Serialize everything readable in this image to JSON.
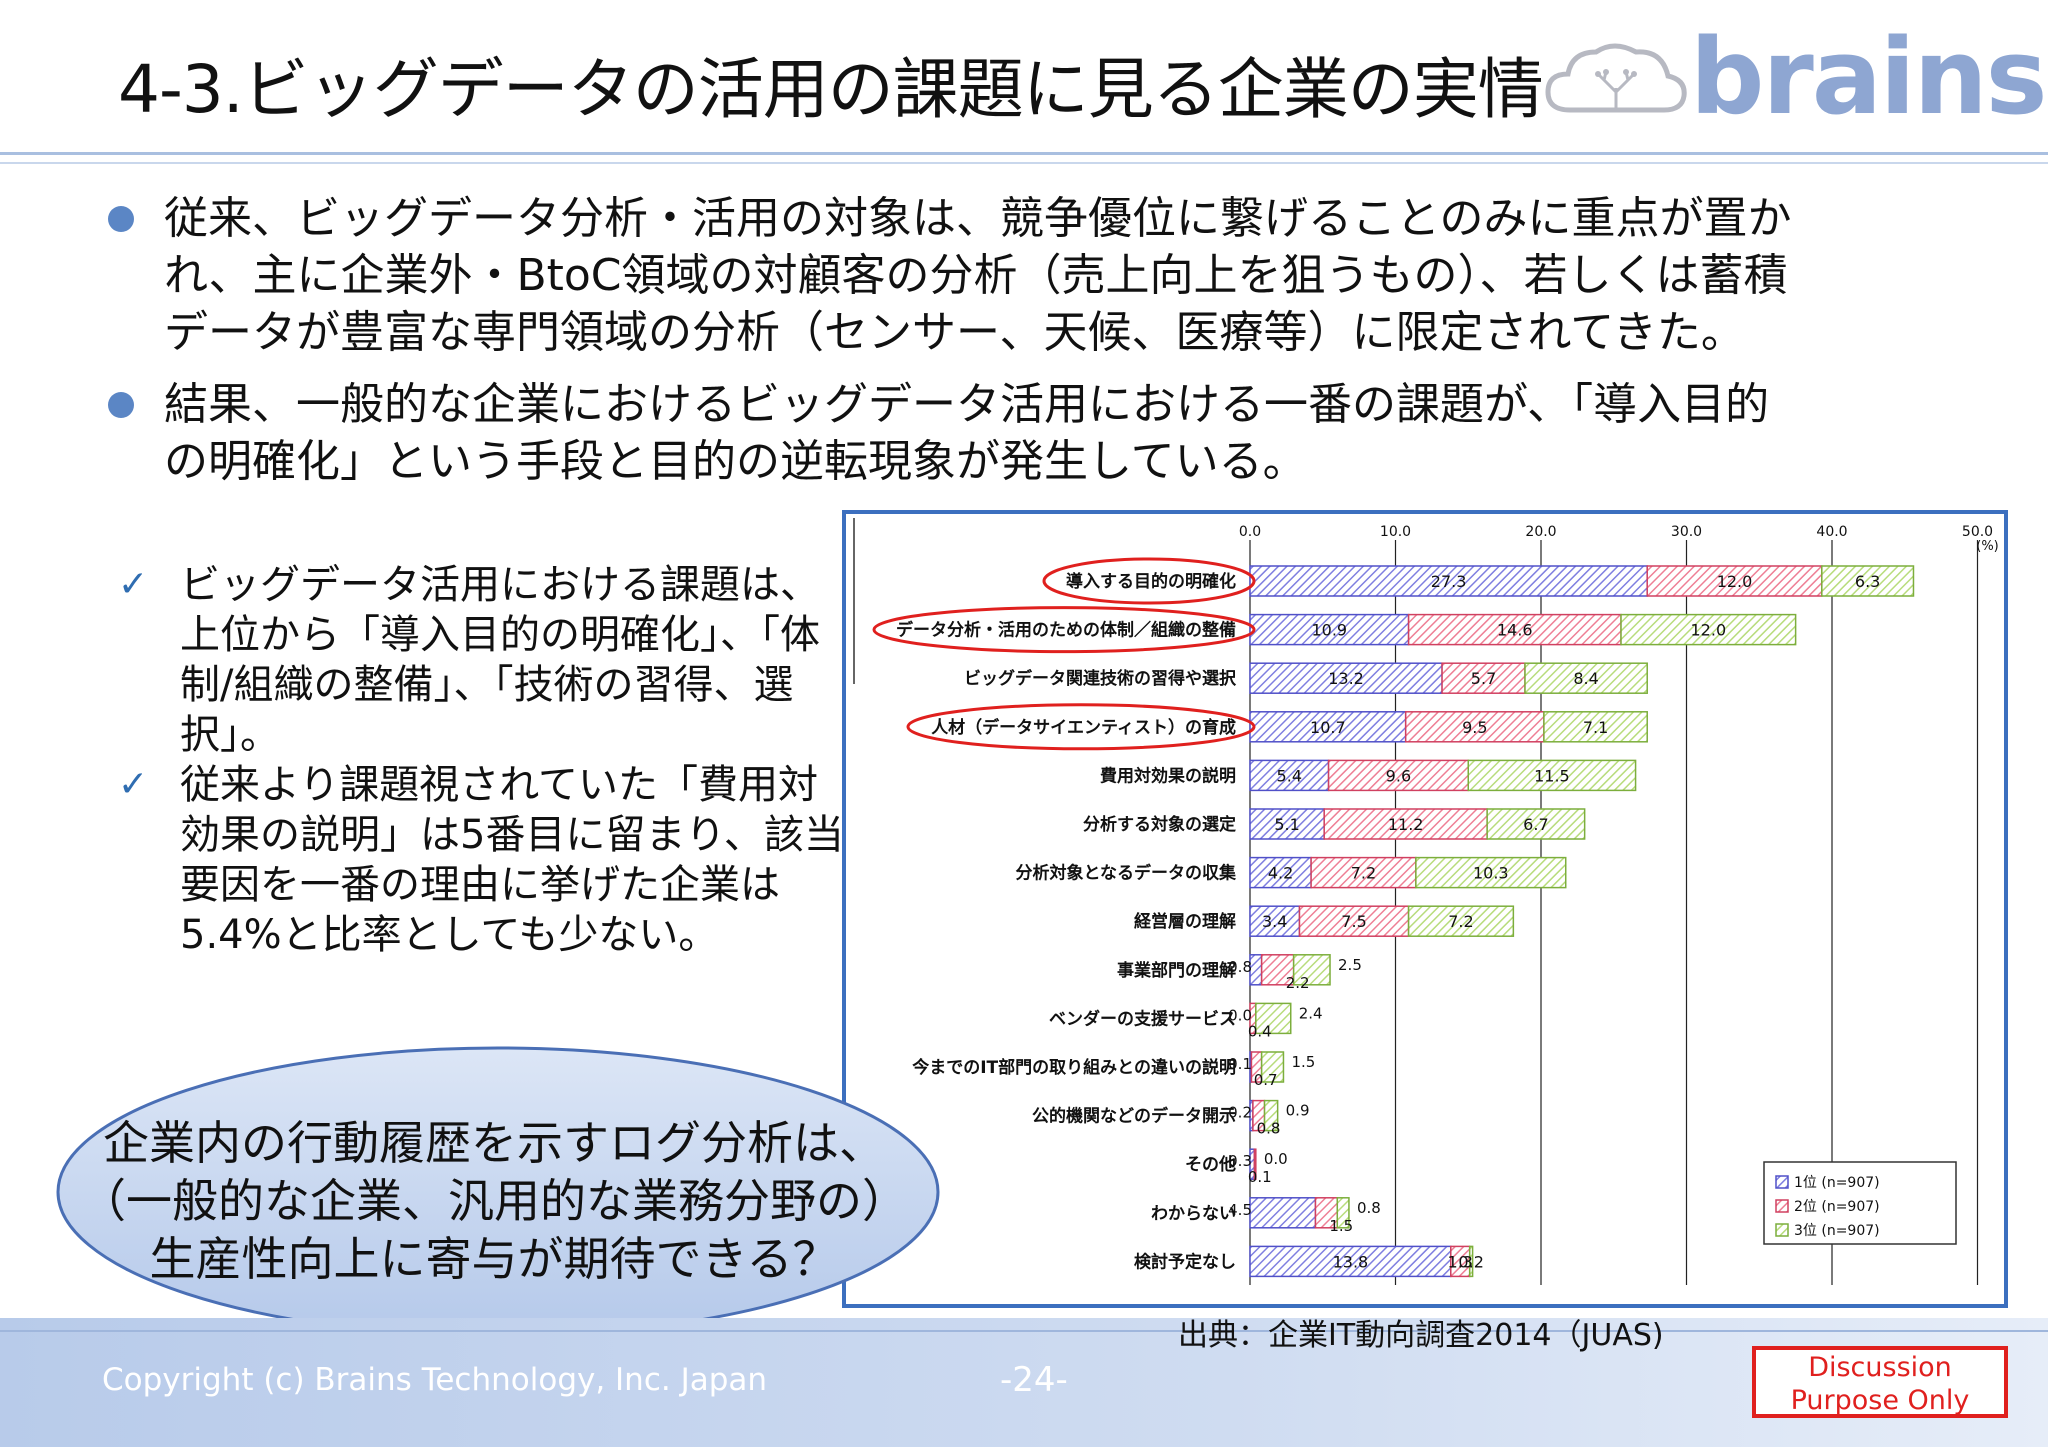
{
  "header": {
    "title": "4-3.ビッグデータの活用の課題に見る企業の実情",
    "logo_text": "brains"
  },
  "bullets": [
    "従来、ビッグデータ分析・活用の対象は、競争優位に繋げることのみに重点が置か\nれ、主に企業外・BtoC領域の対顧客の分析（売上向上を狙うもの）、若しくは蓄積\nデータが豊富な専門領域の分析（センサー、天候、医療等）に限定されてきた。",
    "結果、一般的な企業におけるビッグデータ活用における一番の課題が、「導入目的\nの明確化」という手段と目的の逆転現象が発生している。"
  ],
  "checks": [
    "ビッグデータ活用における課題は、上位から「導入目的の明確化」、「体制/組織の整備」、「技術の習得、選択」。",
    "従来より課題視されていた「費用対効果の説明」は5番目に留まり、該当要因を一番の理由に挙げた企業は5.4%と比率としても少ない。"
  ],
  "callout": "企業内の行動履歴を示すログ分析は、\n（一般的な企業、汎用的な業務分野の）\n生産性向上に寄与が期待できる？",
  "source": "出典：企業IT動向調査2014（JUAS)",
  "footer": {
    "copyright": "Copyright (c) Brains Technology, Inc. Japan",
    "page": "-24-",
    "stamp": "Discussion\nPurpose Only"
  },
  "colors": {
    "accent": "#5b86c5",
    "frame": "#3c6fbf",
    "rank1": "#7f7fe0",
    "rank2": "#ee7f95",
    "rank3": "#b8dc7c",
    "highlight": "#e0201e"
  },
  "chart_data": {
    "type": "bar",
    "orientation": "horizontal",
    "stacked": true,
    "unit": "(%)",
    "xlim": [
      0,
      50
    ],
    "xticks": [
      "0.0",
      "10.0",
      "20.0",
      "30.0",
      "40.0",
      "50.0"
    ],
    "categories": [
      "導入する目的の明確化",
      "データ分析・活用のための体制／組織の整備",
      "ビッグデータ関連技術の習得や選択",
      "人材（データサイエンティスト）の育成",
      "費用対効果の説明",
      "分析する対象の選定",
      "分析対象となるデータの収集",
      "経営層の理解",
      "事業部門の理解",
      "ベンダーの支援サービス",
      "今までのIT部門の取り組みとの違いの説明",
      "公的機関などのデータ開示",
      "その他",
      "わからない",
      "検討予定なし"
    ],
    "highlighted": [
      0,
      1,
      3
    ],
    "series": [
      {
        "name": "1位 (n=907)",
        "values": [
          27.3,
          10.9,
          13.2,
          10.7,
          5.4,
          5.1,
          4.2,
          3.4,
          0.8,
          0.0,
          0.1,
          0.2,
          0.3,
          4.5,
          13.8
        ]
      },
      {
        "name": "2位 (n=907)",
        "values": [
          12.0,
          14.6,
          5.7,
          9.5,
          9.6,
          11.2,
          7.2,
          7.5,
          2.2,
          0.4,
          0.7,
          0.8,
          0.1,
          1.5,
          1.3
        ]
      },
      {
        "name": "3位 (n=907)",
        "values": [
          6.3,
          12.0,
          8.4,
          7.1,
          11.5,
          6.7,
          10.3,
          7.2,
          2.5,
          2.4,
          1.5,
          0.9,
          0.0,
          0.8,
          0.2
        ]
      }
    ],
    "legend_position": "bottom-right",
    "grid": true
  }
}
